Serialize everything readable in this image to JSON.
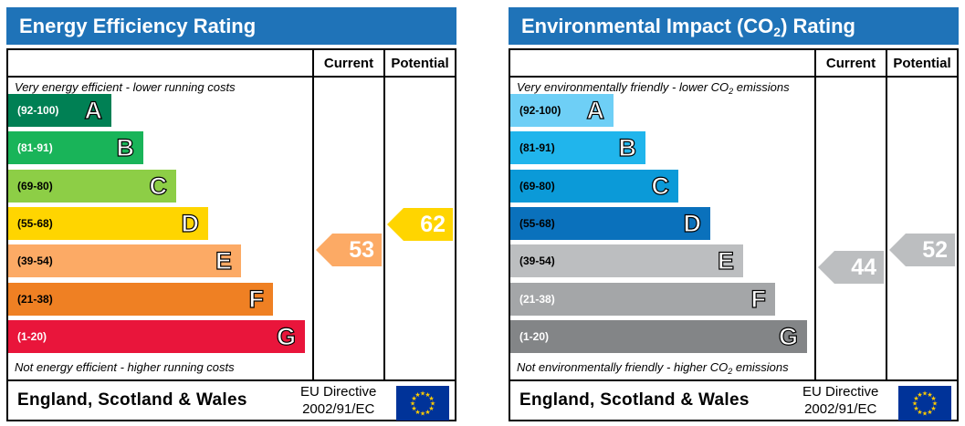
{
  "energy": {
    "title": "Energy Efficiency Rating",
    "col_current": "Current",
    "col_potential": "Potential",
    "top_note": "Very energy efficient - lower running costs",
    "bottom_note": "Not energy efficient - higher running costs",
    "bands": [
      {
        "range": "(92-100)",
        "letter": "A",
        "color": "#008054",
        "text": "light"
      },
      {
        "range": "(81-91)",
        "letter": "B",
        "color": "#19b459",
        "text": "light"
      },
      {
        "range": "(69-80)",
        "letter": "C",
        "color": "#8dce46",
        "text": "dark"
      },
      {
        "range": "(55-68)",
        "letter": "D",
        "color": "#ffd500",
        "text": "dark"
      },
      {
        "range": "(39-54)",
        "letter": "E",
        "color": "#fcaa65",
        "text": "dark"
      },
      {
        "range": "(21-38)",
        "letter": "F",
        "color": "#ef8023",
        "text": "dark"
      },
      {
        "range": "(1-20)",
        "letter": "G",
        "color": "#e9153b",
        "text": "light"
      }
    ],
    "current": {
      "value": "53",
      "band": "E",
      "color": "#fcaa65"
    },
    "potential": {
      "value": "62",
      "band": "D",
      "color": "#ffd500"
    },
    "footer": {
      "country": "England, Scotland & Wales",
      "directive_line1": "EU Directive",
      "directive_line2": "2002/91/EC"
    }
  },
  "environment": {
    "title": "Environmental Impact (CO2) Rating",
    "title_prefix": "Environmental Impact (CO",
    "title_sub": "2",
    "title_suffix": ") Rating",
    "col_current": "Current",
    "col_potential": "Potential",
    "top_note_prefix": "Very environmentally friendly - lower CO",
    "top_note_sub": "2",
    "top_note_suffix": " emissions",
    "bottom_note_prefix": "Not environmentally friendly - higher CO",
    "bottom_note_sub": "2",
    "bottom_note_suffix": " emissions",
    "bands": [
      {
        "range": "(92-100)",
        "letter": "A",
        "color": "#6ecff6",
        "text": "dark"
      },
      {
        "range": "(81-91)",
        "letter": "B",
        "color": "#20b5ec",
        "text": "dark"
      },
      {
        "range": "(69-80)",
        "letter": "C",
        "color": "#0b9ad8",
        "text": "dark"
      },
      {
        "range": "(55-68)",
        "letter": "D",
        "color": "#0a71bc",
        "text": "dark"
      },
      {
        "range": "(39-54)",
        "letter": "E",
        "color": "#bcbec0",
        "text": "dark"
      },
      {
        "range": "(21-38)",
        "letter": "F",
        "color": "#a4a6a8",
        "text": "light"
      },
      {
        "range": "(1-20)",
        "letter": "G",
        "color": "#838587",
        "text": "light"
      }
    ],
    "current": {
      "value": "44",
      "band": "E",
      "color": "#bcbec0"
    },
    "potential": {
      "value": "52",
      "band": "E",
      "color": "#bcbec0"
    },
    "footer": {
      "country": "England, Scotland & Wales",
      "directive_line1": "EU Directive",
      "directive_line2": "2002/91/EC"
    }
  },
  "icons": {
    "eu_flag": "eu-flag-icon"
  },
  "colors": {
    "title_bar": "#1f73b8",
    "flag_blue": "#003399",
    "flag_star": "#ffcc00"
  }
}
